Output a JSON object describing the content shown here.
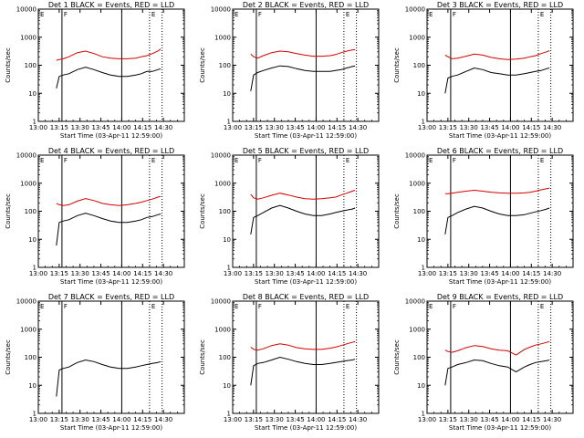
{
  "colors": {
    "events": "#000000",
    "lld": "#d40000",
    "axes": "#000000",
    "background": "#ffffff"
  },
  "figure": {
    "xlabel": "Start Time (03-Apr-11 12:59:00)",
    "ylabel": "Counts/sec",
    "yscale": "log",
    "ylim": [
      1,
      10000
    ],
    "xlim_minutes": [
      0,
      105
    ],
    "x_tick_labels": [
      "13:00",
      "13:15",
      "13:30",
      "13:45",
      "14:00",
      "14:15",
      "14:30"
    ],
    "x_tick_minutes": [
      0,
      15,
      30,
      45,
      60,
      75,
      90
    ],
    "y_tick_labels": [
      "1",
      "10",
      "100",
      "1000",
      "10000"
    ],
    "y_tick_values": [
      1,
      10,
      100,
      1000,
      10000
    ],
    "markers": [
      {
        "label": "E",
        "minute": 0,
        "style": "dotted"
      },
      {
        "label": "F",
        "minute": 17,
        "style": "solid"
      },
      {
        "label": "",
        "minute": 60,
        "style": "solid"
      },
      {
        "label": "E",
        "minute": 80,
        "style": "dotted"
      },
      {
        "label": "",
        "minute": 89,
        "style": "dotted"
      }
    ]
  },
  "chart_data": [
    {
      "type": "line",
      "title": "Det 1 BLACK = Events, RED = LLD",
      "x_minutes": [
        13,
        15,
        18,
        22,
        28,
        34,
        40,
        46,
        52,
        58,
        64,
        70,
        74,
        78,
        82,
        86,
        88
      ],
      "series": [
        {
          "name": "Events",
          "values": [
            15,
            40,
            45,
            50,
            70,
            85,
            70,
            55,
            45,
            40,
            40,
            45,
            50,
            60,
            60,
            70,
            75
          ]
        },
        {
          "name": "LLD",
          "values": [
            150,
            160,
            170,
            200,
            280,
            320,
            260,
            200,
            180,
            170,
            170,
            180,
            200,
            220,
            260,
            320,
            380
          ]
        }
      ]
    },
    {
      "type": "line",
      "title": "Det 2 BLACK = Events, RED = LLD",
      "x_minutes": [
        13,
        15,
        18,
        22,
        28,
        34,
        40,
        46,
        52,
        58,
        64,
        70,
        74,
        78,
        82,
        86,
        88
      ],
      "series": [
        {
          "name": "Events",
          "values": [
            12,
            45,
            55,
            65,
            80,
            95,
            90,
            75,
            65,
            60,
            60,
            60,
            65,
            70,
            80,
            90,
            95
          ]
        },
        {
          "name": "LLD",
          "values": [
            250,
            200,
            180,
            220,
            280,
            320,
            300,
            260,
            230,
            210,
            210,
            220,
            240,
            280,
            320,
            350,
            360
          ]
        }
      ]
    },
    {
      "type": "line",
      "title": "Det 3 BLACK = Events, RED = LLD",
      "x_minutes": [
        13,
        15,
        18,
        22,
        28,
        34,
        40,
        46,
        52,
        58,
        64,
        70,
        74,
        78,
        82,
        86,
        88
      ],
      "series": [
        {
          "name": "Events",
          "values": [
            10,
            35,
            40,
            45,
            60,
            80,
            70,
            55,
            50,
            45,
            45,
            50,
            55,
            60,
            65,
            75,
            80
          ]
        },
        {
          "name": "LLD",
          "values": [
            230,
            200,
            170,
            180,
            210,
            250,
            230,
            190,
            170,
            160,
            165,
            180,
            200,
            220,
            260,
            300,
            330
          ]
        }
      ]
    },
    {
      "type": "line",
      "title": "Det 4 BLACK = Events, RED = LLD",
      "x_minutes": [
        13,
        15,
        18,
        22,
        28,
        34,
        40,
        46,
        52,
        58,
        64,
        70,
        74,
        78,
        82,
        86,
        88
      ],
      "series": [
        {
          "name": "Events",
          "values": [
            6,
            40,
            45,
            50,
            70,
            85,
            70,
            55,
            45,
            40,
            40,
            45,
            50,
            60,
            65,
            75,
            80
          ]
        },
        {
          "name": "LLD",
          "values": [
            190,
            170,
            160,
            170,
            230,
            280,
            240,
            190,
            170,
            160,
            170,
            190,
            210,
            240,
            270,
            320,
            340
          ]
        }
      ]
    },
    {
      "type": "line",
      "title": "Det 5 BLACK = Events, RED = LLD",
      "x_minutes": [
        13,
        15,
        18,
        22,
        28,
        34,
        40,
        46,
        52,
        58,
        64,
        70,
        74,
        78,
        82,
        86,
        88
      ],
      "series": [
        {
          "name": "Events",
          "values": [
            15,
            60,
            70,
            90,
            130,
            160,
            130,
            100,
            80,
            70,
            70,
            80,
            90,
            100,
            110,
            120,
            130
          ]
        },
        {
          "name": "LLD",
          "values": [
            400,
            300,
            270,
            300,
            370,
            440,
            380,
            320,
            280,
            270,
            280,
            300,
            320,
            380,
            440,
            520,
            560
          ]
        }
      ]
    },
    {
      "type": "line",
      "title": "Det 6 BLACK = Events, RED = LLD",
      "x_minutes": [
        13,
        15,
        18,
        22,
        28,
        34,
        40,
        46,
        52,
        58,
        64,
        70,
        74,
        78,
        82,
        86,
        88
      ],
      "series": [
        {
          "name": "Events",
          "values": [
            15,
            60,
            70,
            90,
            120,
            150,
            130,
            100,
            80,
            70,
            70,
            75,
            85,
            95,
            105,
            120,
            130
          ]
        },
        {
          "name": "LLD",
          "values": [
            420,
            420,
            440,
            470,
            520,
            560,
            520,
            480,
            450,
            440,
            440,
            450,
            470,
            520,
            580,
            640,
            660
          ]
        }
      ]
    },
    {
      "type": "line",
      "title": "Det 7 BLACK = Events, RED = LLD",
      "x_minutes": [
        13,
        15,
        18,
        22,
        28,
        34,
        40,
        46,
        52,
        58,
        64,
        70,
        74,
        78,
        82,
        86,
        88
      ],
      "series": [
        {
          "name": "Events",
          "values": [
            4,
            35,
            40,
            45,
            65,
            80,
            70,
            55,
            45,
            40,
            40,
            45,
            50,
            55,
            60,
            65,
            70
          ]
        },
        {
          "name": "LLD",
          "values": []
        }
      ]
    },
    {
      "type": "line",
      "title": "Det 8 BLACK = Events, RED = LLD",
      "x_minutes": [
        13,
        15,
        18,
        22,
        28,
        34,
        40,
        46,
        52,
        58,
        64,
        70,
        74,
        78,
        82,
        86,
        88
      ],
      "series": [
        {
          "name": "Events",
          "values": [
            10,
            50,
            60,
            65,
            80,
            100,
            85,
            70,
            60,
            55,
            55,
            60,
            65,
            70,
            75,
            80,
            85
          ]
        },
        {
          "name": "LLD",
          "values": [
            230,
            190,
            180,
            200,
            260,
            300,
            270,
            220,
            200,
            190,
            190,
            210,
            230,
            260,
            300,
            340,
            360
          ]
        }
      ]
    },
    {
      "type": "line",
      "title": "Det 9 BLACK = Events, RED = LLD",
      "x_minutes": [
        13,
        15,
        18,
        22,
        28,
        34,
        40,
        46,
        52,
        58,
        64,
        70,
        74,
        78,
        82,
        86,
        88
      ],
      "series": [
        {
          "name": "Events",
          "values": [
            10,
            40,
            45,
            55,
            65,
            80,
            75,
            60,
            50,
            45,
            30,
            45,
            55,
            65,
            70,
            75,
            80
          ]
        },
        {
          "name": "LLD",
          "values": [
            180,
            160,
            150,
            170,
            220,
            260,
            240,
            200,
            180,
            170,
            120,
            190,
            230,
            270,
            300,
            340,
            360
          ]
        }
      ]
    }
  ]
}
